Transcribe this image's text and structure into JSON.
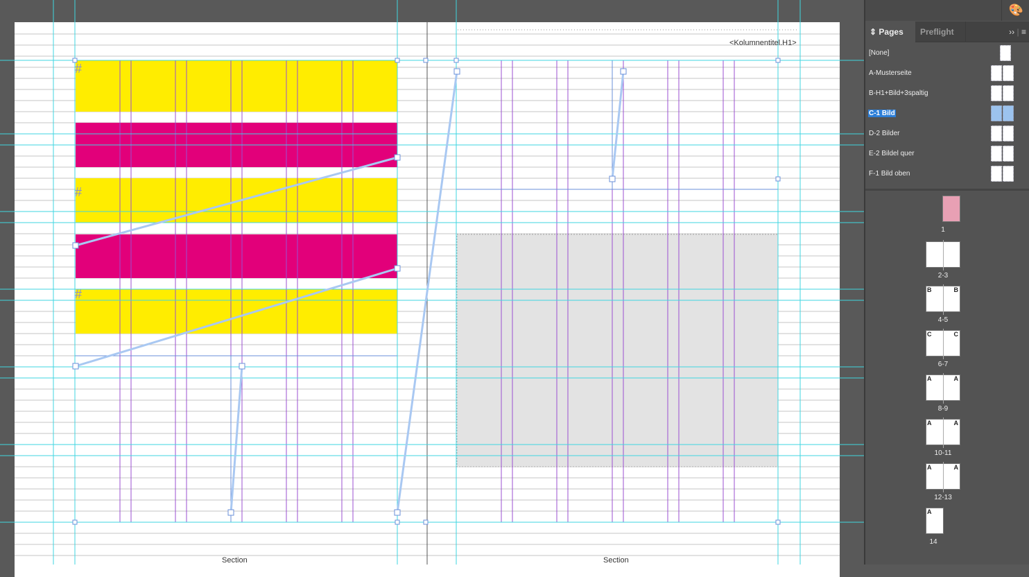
{
  "document": {
    "running_head": "<Kolumnentitel.H1>",
    "footer_left": "Section",
    "footer_right": "Section",
    "colors": {
      "yellow": "#ffed00",
      "magenta": "#e2007a",
      "guide": "#3fd6e0",
      "column": "#9b4fd0",
      "frame": "#6a8fd8",
      "thread": "#a9c8f2",
      "placeholder": "#e3e3e3"
    }
  },
  "panel": {
    "tabs": [
      {
        "label": "Pages",
        "active": true
      },
      {
        "label": "Preflight",
        "active": false
      }
    ],
    "menu_icons": [
      "expand-icon",
      "panel-menu-icon"
    ],
    "masters": [
      {
        "label": "[None]"
      },
      {
        "label": "A-Musterseite"
      },
      {
        "label": "B-H1+Bild+3spaltig"
      },
      {
        "label": "C-1 Bild",
        "selected": true
      },
      {
        "label": "D-2 Bilder"
      },
      {
        "label": "E-2 Bildel quer"
      },
      {
        "label": "F-1 Bild oben"
      }
    ],
    "pages": [
      {
        "label": "1",
        "left_master": "",
        "right_master": ""
      },
      {
        "label": "2-3",
        "left_master": "",
        "right_master": ""
      },
      {
        "label": "4-5",
        "left_master": "B",
        "right_master": "B"
      },
      {
        "label": "6-7",
        "left_master": "C",
        "right_master": "C"
      },
      {
        "label": "8-9",
        "left_master": "A",
        "right_master": "A"
      },
      {
        "label": "10-11",
        "left_master": "A",
        "right_master": "A"
      },
      {
        "label": "12-13",
        "left_master": "A",
        "right_master": "A"
      },
      {
        "label": "14",
        "left_master": "A",
        "right_master": ""
      }
    ]
  }
}
